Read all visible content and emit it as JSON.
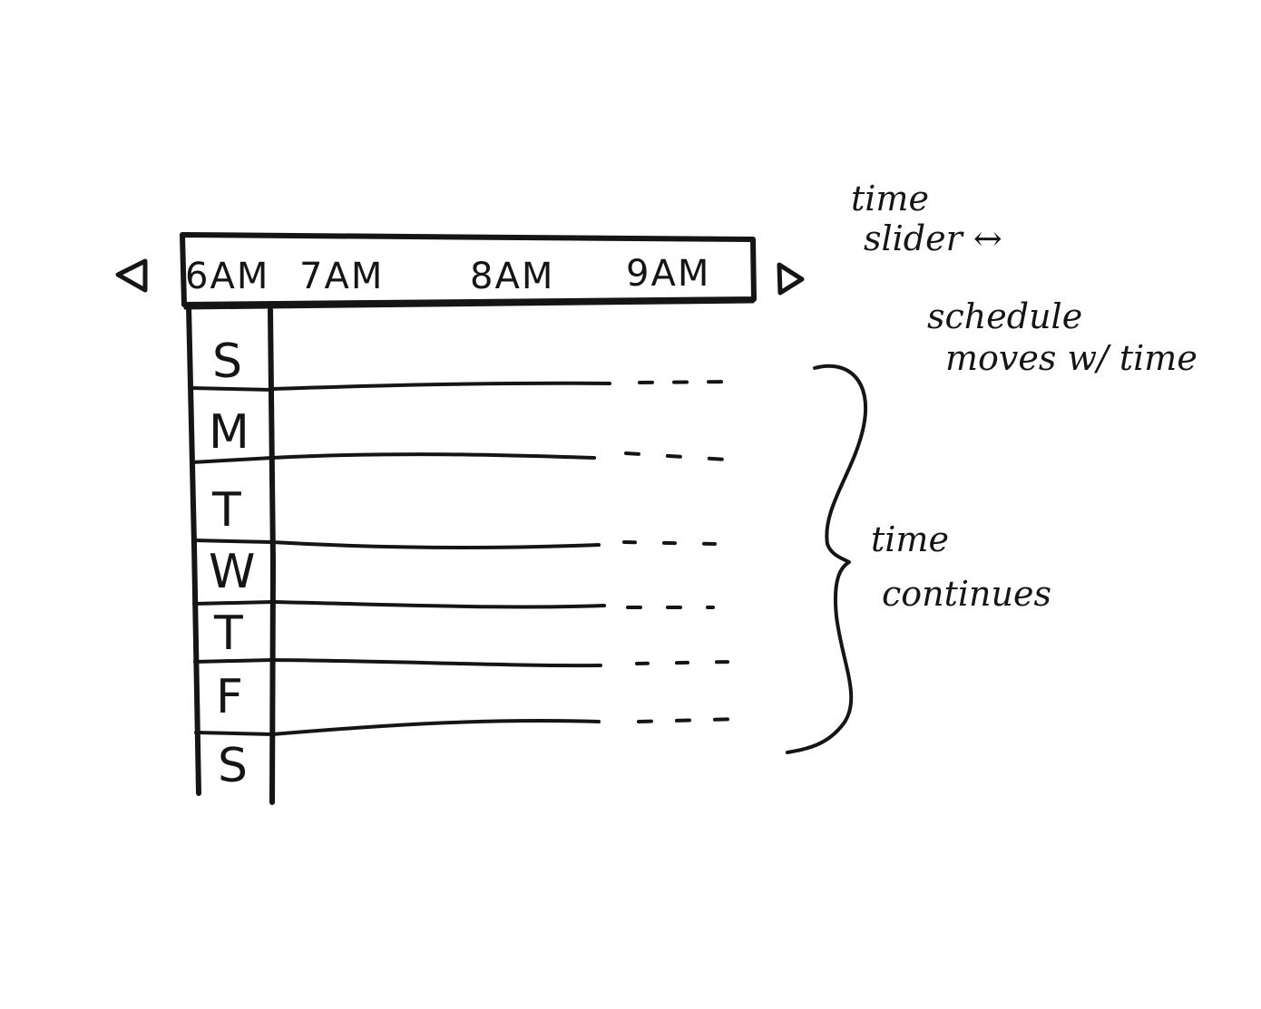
{
  "slider": {
    "hours": [
      "6AM",
      "7AM",
      "8AM",
      "9AM"
    ],
    "prev_icon": "triangle-left-icon",
    "next_icon": "triangle-right-icon"
  },
  "days": [
    "S",
    "M",
    "T",
    "W",
    "T",
    "F",
    "S"
  ],
  "annotations": {
    "slider_note_line1": "time",
    "slider_note_line2": "slider ↔",
    "schedule_note_line1": "schedule",
    "schedule_note_line2": "moves w/ time",
    "continues_note_line1": "time",
    "continues_note_line2": "continues"
  },
  "colors": {
    "ink": "#151515",
    "paper": "#ffffff"
  }
}
